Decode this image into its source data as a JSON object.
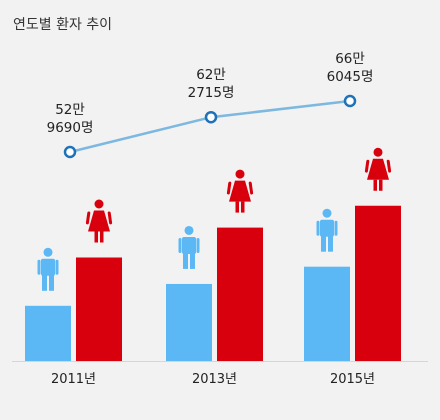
{
  "chart_data": {
    "type": "bar",
    "title": "연도별 환자 추이",
    "categories": [
      "2011년",
      "2013년",
      "2015년"
    ],
    "series": [
      {
        "icon": "male-figure-icon",
        "color": "#5cb8f5",
        "values": [
          24,
          33.5,
          41
        ]
      },
      {
        "icon": "female-figure-icon",
        "color": "#d9000d",
        "values": [
          45,
          58,
          67.5
        ]
      }
    ],
    "line": {
      "color": "#7db8e0",
      "values": [
        52.969,
        62.2715,
        66.6045
      ],
      "labels": [
        [
          "52만",
          "9690명"
        ],
        [
          "62만",
          "2715명"
        ],
        [
          "66만",
          "6045명"
        ]
      ]
    },
    "ylim": [
      0,
      75
    ],
    "grid": false,
    "legend": "none"
  }
}
